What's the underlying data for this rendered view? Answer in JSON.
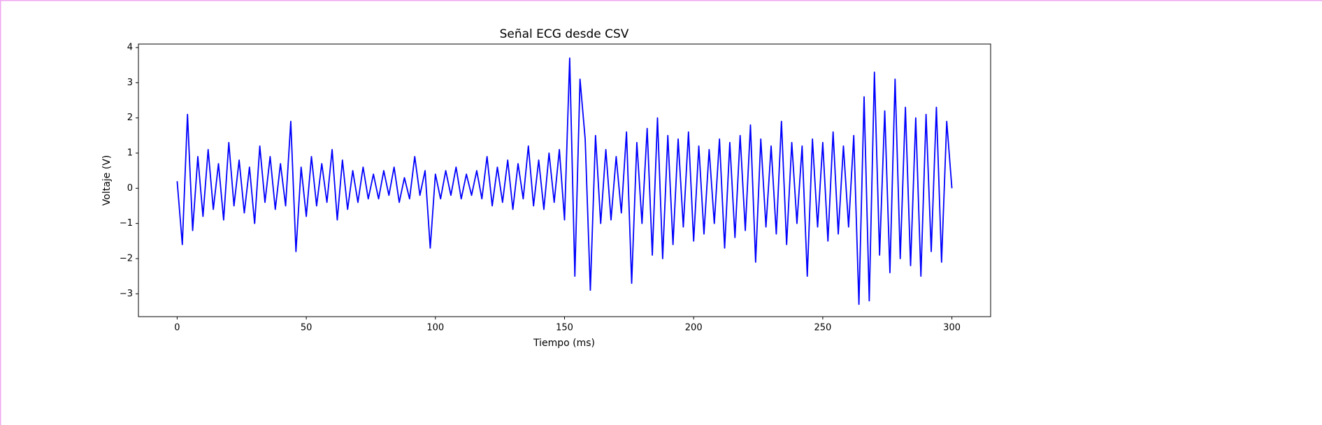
{
  "chart_data": {
    "type": "line",
    "title": "Señal ECG desde CSV",
    "xlabel": "Tiempo (ms)",
    "ylabel": "Voltaje (V)",
    "color": "#0000ff",
    "x": [
      0,
      2,
      4,
      6,
      8,
      10,
      12,
      14,
      16,
      18,
      20,
      22,
      24,
      26,
      28,
      30,
      32,
      34,
      36,
      38,
      40,
      42,
      44,
      46,
      48,
      50,
      52,
      54,
      56,
      58,
      60,
      62,
      64,
      66,
      68,
      70,
      72,
      74,
      76,
      78,
      80,
      82,
      84,
      86,
      88,
      90,
      92,
      94,
      96,
      98,
      100,
      102,
      104,
      106,
      108,
      110,
      112,
      114,
      116,
      118,
      120,
      122,
      124,
      126,
      128,
      130,
      132,
      134,
      136,
      138,
      140,
      142,
      144,
      146,
      148,
      150,
      152,
      154,
      156,
      158,
      160,
      162,
      164,
      166,
      168,
      170,
      172,
      174,
      176,
      178,
      180,
      182,
      184,
      186,
      188,
      190,
      192,
      194,
      196,
      198,
      200,
      202,
      204,
      206,
      208,
      210,
      212,
      214,
      216,
      218,
      220,
      222,
      224,
      226,
      228,
      230,
      232,
      234,
      236,
      238,
      240,
      242,
      244,
      246,
      248,
      250,
      252,
      254,
      256,
      258,
      260,
      262,
      264,
      266,
      268,
      270,
      272,
      274,
      276,
      278,
      280,
      282,
      284,
      286,
      288,
      290,
      292,
      294,
      296,
      298,
      300
    ],
    "values": [
      0.2,
      -1.6,
      2.1,
      -1.2,
      0.9,
      -0.8,
      1.1,
      -0.6,
      0.7,
      -0.9,
      1.3,
      -0.5,
      0.8,
      -0.7,
      0.6,
      -1.0,
      1.2,
      -0.4,
      0.9,
      -0.6,
      0.7,
      -0.5,
      1.9,
      -1.8,
      0.6,
      -0.8,
      0.9,
      -0.5,
      0.7,
      -0.4,
      1.1,
      -0.9,
      0.8,
      -0.6,
      0.5,
      -0.4,
      0.6,
      -0.3,
      0.4,
      -0.3,
      0.5,
      -0.2,
      0.6,
      -0.4,
      0.3,
      -0.3,
      0.9,
      -0.2,
      0.5,
      -1.7,
      0.4,
      -0.3,
      0.5,
      -0.2,
      0.6,
      -0.3,
      0.4,
      -0.2,
      0.5,
      -0.3,
      0.9,
      -0.5,
      0.6,
      -0.4,
      0.8,
      -0.6,
      0.7,
      -0.3,
      1.2,
      -0.5,
      0.8,
      -0.6,
      1.0,
      -0.4,
      1.1,
      -0.9,
      3.7,
      -2.5,
      3.1,
      1.4,
      -2.9,
      1.5,
      -1.0,
      1.1,
      -0.9,
      0.9,
      -0.7,
      1.6,
      -2.7,
      1.3,
      -1.0,
      1.7,
      -1.9,
      2.0,
      -2.0,
      1.5,
      -1.6,
      1.4,
      -1.1,
      1.6,
      -1.5,
      1.2,
      -1.3,
      1.1,
      -1.0,
      1.4,
      -1.7,
      1.3,
      -1.4,
      1.5,
      -1.2,
      1.8,
      -2.1,
      1.4,
      -1.1,
      1.2,
      -1.3,
      1.9,
      -1.6,
      1.3,
      -1.0,
      1.2,
      -2.5,
      1.4,
      -1.1,
      1.3,
      -1.5,
      1.6,
      -1.3,
      1.2,
      -1.1,
      1.5,
      -3.3,
      2.6,
      -3.2,
      3.3,
      -1.9,
      2.2,
      -2.4,
      3.1,
      -2.0,
      2.3,
      -2.2,
      2.0,
      -2.5,
      2.1,
      -1.8,
      2.3,
      -2.1,
      1.9,
      0.0
    ],
    "xlim": [
      -15,
      315
    ],
    "ylim": [
      -3.65,
      4.1
    ],
    "xticks": [
      0,
      50,
      100,
      150,
      200,
      250,
      300
    ],
    "yticks": [
      {
        "value": -3,
        "label": "−3"
      },
      {
        "value": -2,
        "label": "−2"
      },
      {
        "value": -1,
        "label": "−1"
      },
      0,
      1,
      2,
      3,
      4
    ]
  }
}
